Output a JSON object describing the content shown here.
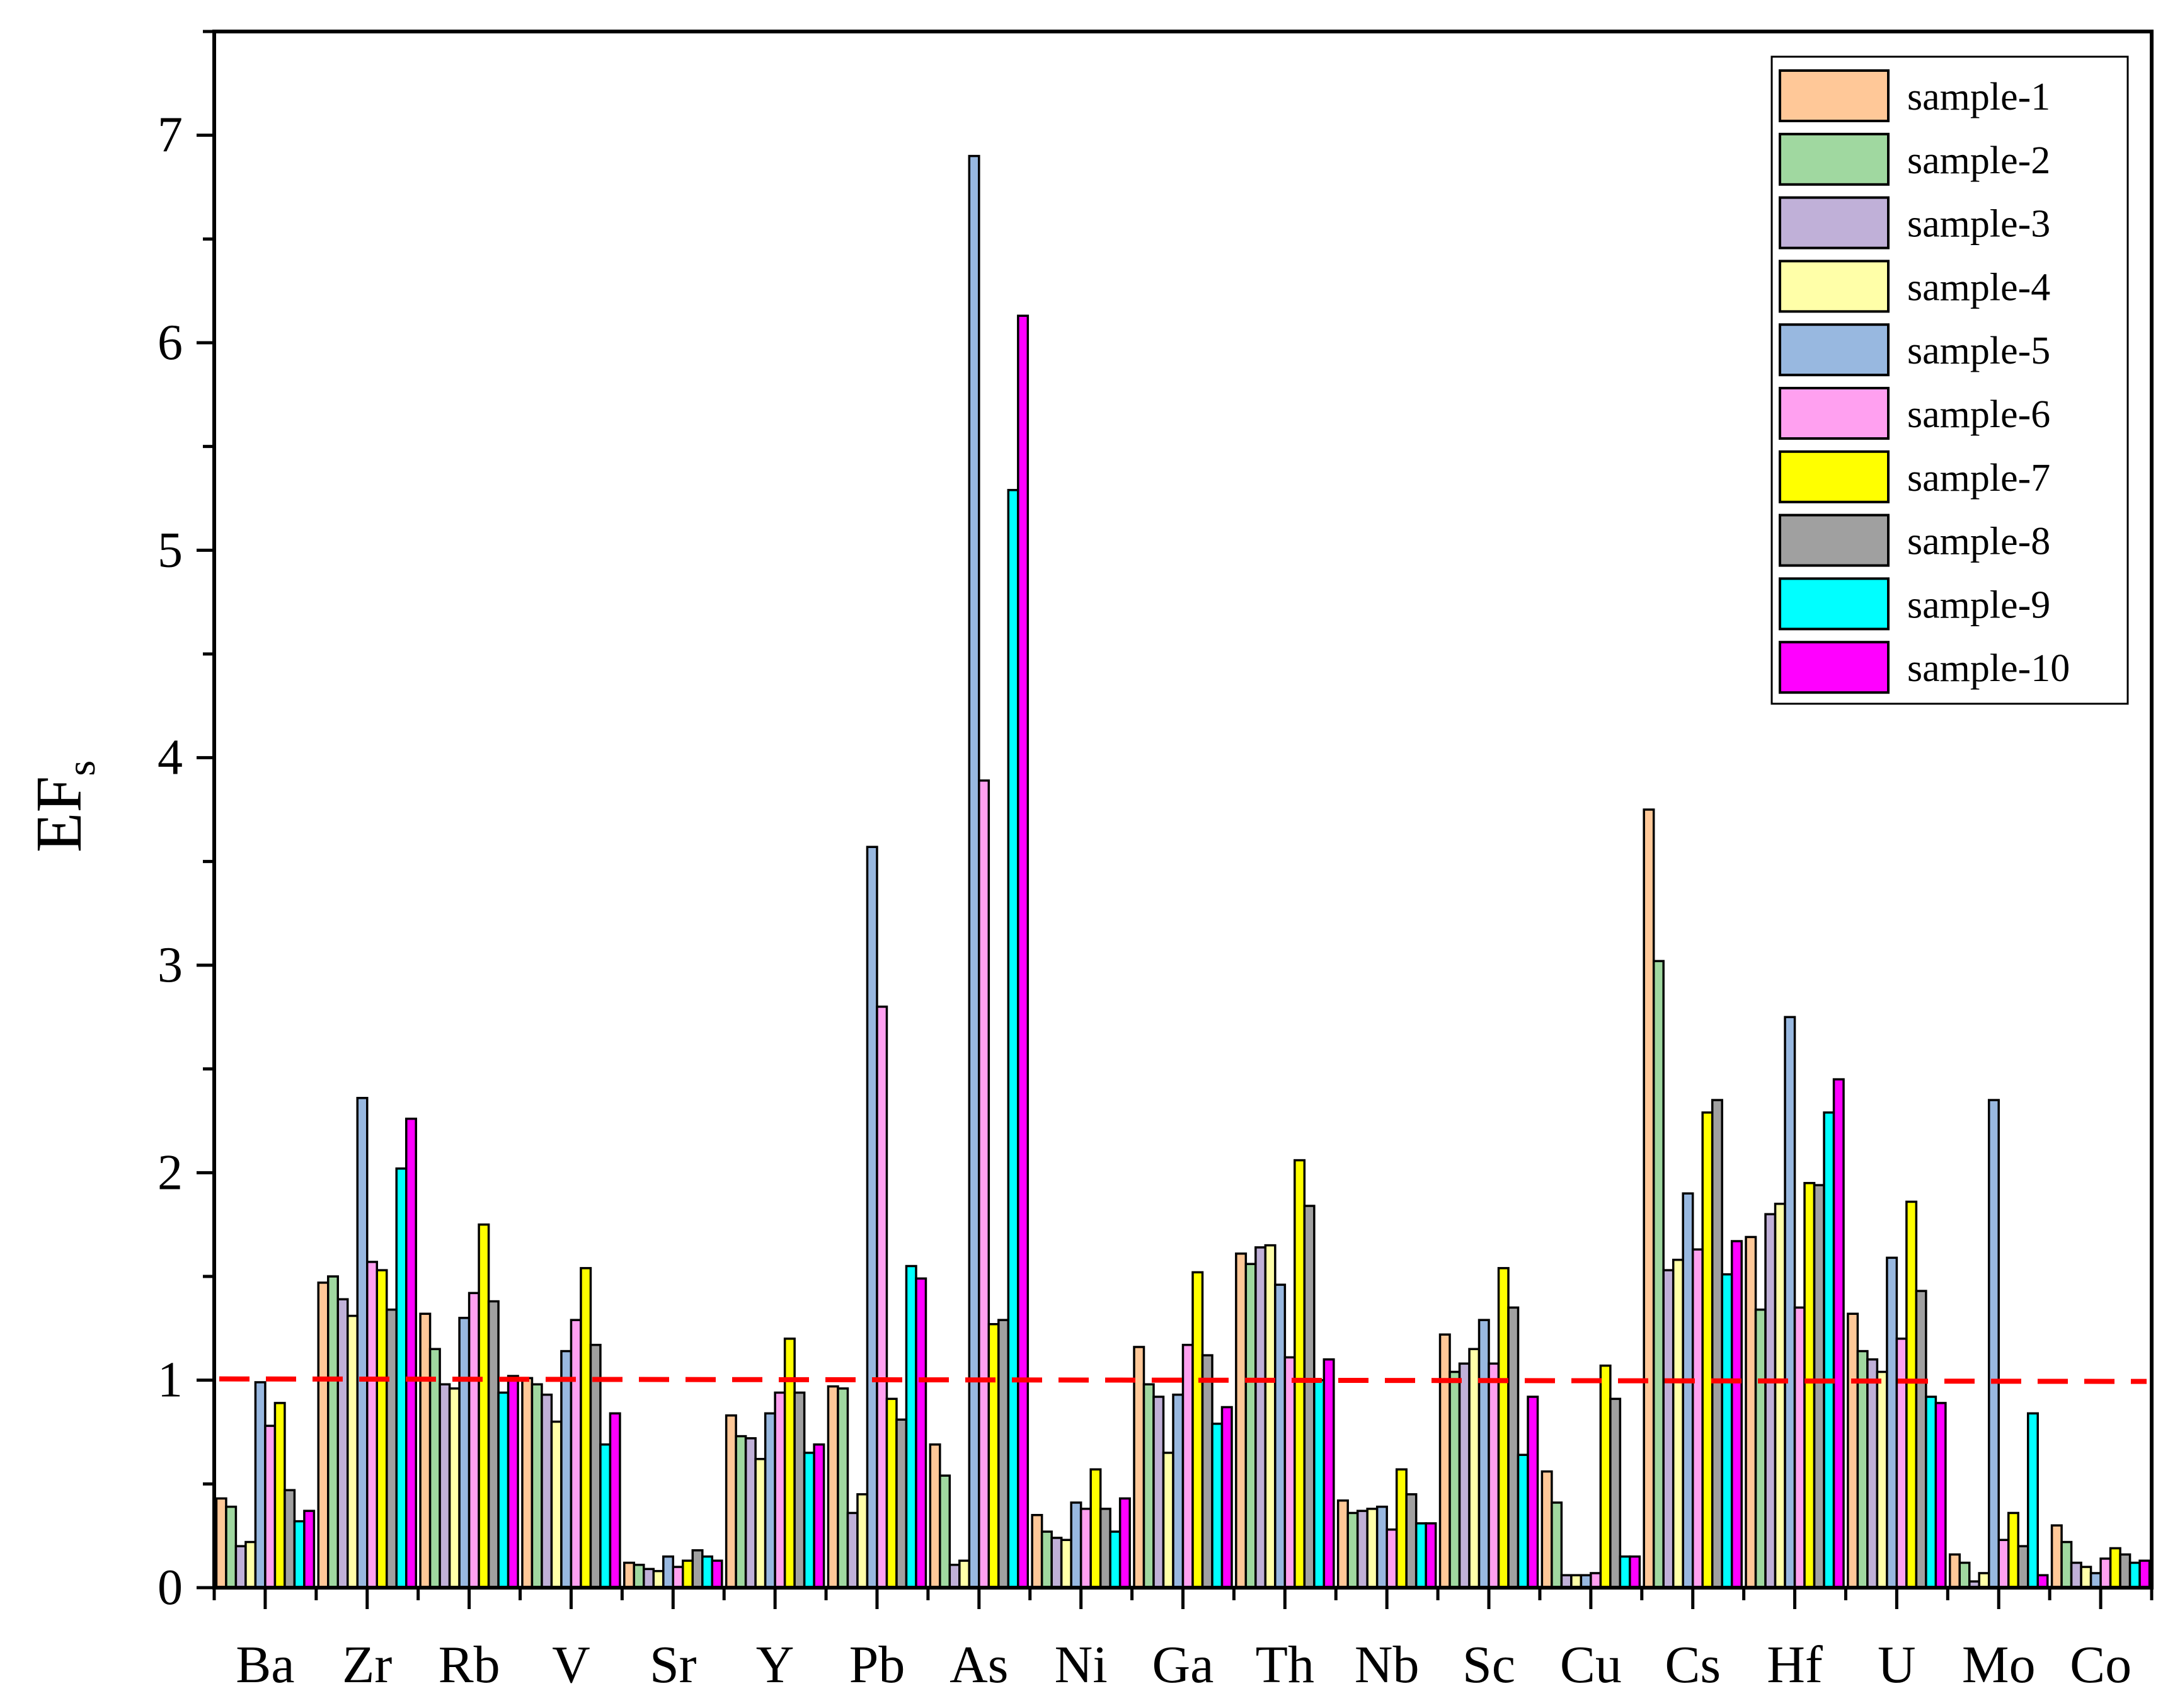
{
  "chart_data": {
    "type": "bar",
    "ylabel": "EF",
    "ylabel_subscript": "s",
    "ylim": [
      0,
      7.5
    ],
    "yticks": [
      "0",
      "1",
      "2",
      "3",
      "4",
      "5",
      "6",
      "7"
    ],
    "reference_line": {
      "y": 1,
      "style": "dashed",
      "color": "#ff0000"
    },
    "legend_position": "top-right",
    "categories": [
      "Ba",
      "Zr",
      "Rb",
      "V",
      "Sr",
      "Y",
      "Pb",
      "As",
      "Ni",
      "Ga",
      "Th",
      "Nb",
      "Sc",
      "Cu",
      "Cs",
      "Hf",
      "U",
      "Mo",
      "Co"
    ],
    "series": [
      {
        "name": "sample-1",
        "color": "#ffc898",
        "values": [
          0.43,
          1.47,
          1.32,
          1.01,
          0.12,
          0.83,
          0.97,
          0.69,
          0.35,
          1.16,
          1.61,
          0.42,
          1.22,
          0.56,
          3.75,
          1.69,
          1.32,
          0.16,
          0.3
        ]
      },
      {
        "name": "sample-2",
        "color": "#a0d8a0",
        "values": [
          0.39,
          1.5,
          1.15,
          0.98,
          0.11,
          0.73,
          0.96,
          0.54,
          0.27,
          0.98,
          1.56,
          0.36,
          1.04,
          0.41,
          3.02,
          1.34,
          1.14,
          0.12,
          0.22
        ]
      },
      {
        "name": "sample-3",
        "color": "#c0b0d8",
        "values": [
          0.2,
          1.39,
          0.98,
          0.93,
          0.09,
          0.72,
          0.36,
          0.11,
          0.24,
          0.92,
          1.64,
          0.37,
          1.08,
          0.06,
          1.53,
          1.8,
          1.1,
          0.03,
          0.12
        ]
      },
      {
        "name": "sample-4",
        "color": "#ffffa8",
        "values": [
          0.22,
          1.31,
          0.96,
          0.8,
          0.08,
          0.62,
          0.45,
          0.13,
          0.23,
          0.65,
          1.65,
          0.38,
          1.15,
          0.06,
          1.58,
          1.85,
          1.04,
          0.07,
          0.1
        ]
      },
      {
        "name": "sample-5",
        "color": "#98b8e0",
        "values": [
          0.99,
          2.36,
          1.3,
          1.14,
          0.15,
          0.84,
          3.57,
          6.9,
          0.41,
          0.93,
          1.46,
          0.39,
          1.29,
          0.06,
          1.9,
          2.75,
          1.59,
          2.35,
          0.07
        ]
      },
      {
        "name": "sample-6",
        "color": "#ffa0f0",
        "values": [
          0.78,
          1.57,
          1.42,
          1.29,
          0.1,
          0.94,
          2.8,
          3.89,
          0.38,
          1.17,
          1.11,
          0.28,
          1.08,
          0.07,
          1.63,
          1.35,
          1.2,
          0.23,
          0.14
        ]
      },
      {
        "name": "sample-7",
        "color": "#ffff00",
        "values": [
          0.89,
          1.53,
          1.75,
          1.54,
          0.13,
          1.2,
          0.91,
          1.27,
          0.57,
          1.52,
          2.06,
          0.57,
          1.54,
          1.07,
          2.29,
          1.95,
          1.86,
          0.36,
          0.19
        ]
      },
      {
        "name": "sample-8",
        "color": "#a0a0a0",
        "values": [
          0.47,
          1.34,
          1.38,
          1.17,
          0.18,
          0.94,
          0.81,
          1.29,
          0.38,
          1.12,
          1.84,
          0.45,
          1.35,
          0.91,
          2.35,
          1.94,
          1.43,
          0.2,
          0.16
        ]
      },
      {
        "name": "sample-9",
        "color": "#00ffff",
        "values": [
          0.32,
          2.02,
          0.94,
          0.69,
          0.15,
          0.65,
          1.55,
          5.29,
          0.27,
          0.79,
          1.0,
          0.31,
          0.64,
          0.15,
          1.51,
          2.29,
          0.92,
          0.84,
          0.12
        ]
      },
      {
        "name": "sample-10",
        "color": "#ff00ff",
        "values": [
          0.37,
          2.26,
          1.02,
          0.84,
          0.13,
          0.69,
          1.49,
          6.13,
          0.43,
          0.87,
          1.1,
          0.31,
          0.92,
          0.15,
          1.67,
          2.45,
          0.89,
          0.06,
          0.13
        ]
      }
    ]
  }
}
